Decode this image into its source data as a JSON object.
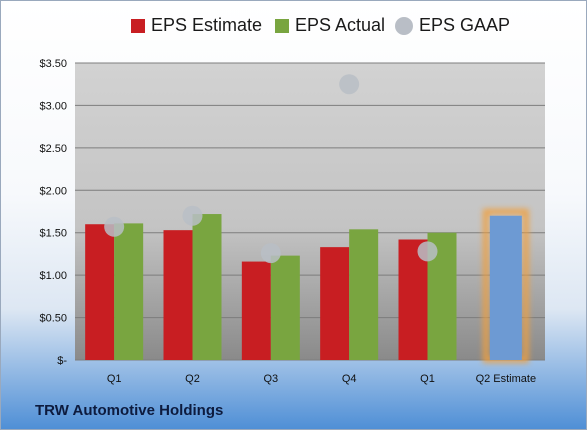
{
  "colors": {
    "estimate": "#c81e22",
    "actual": "#79a540",
    "gaap": "#b9bec6",
    "next_estimate": "#6d9ad3",
    "next_estimate_glow": "#f0a040"
  },
  "legend": [
    {
      "label": "EPS Estimate",
      "color": "#c81e22",
      "shape": "square"
    },
    {
      "label": "EPS Actual",
      "color": "#79a540",
      "shape": "square"
    },
    {
      "label": "EPS GAAP",
      "color": "#b9bec6",
      "shape": "circle"
    }
  ],
  "company": "TRW Automotive Holdings",
  "chart_data": {
    "type": "bar",
    "categories": [
      "Q1",
      "Q2",
      "Q3",
      "Q4",
      "Q1",
      "Q2 Estimate"
    ],
    "series": [
      {
        "name": "EPS Estimate",
        "values": [
          1.6,
          1.53,
          1.16,
          1.33,
          1.42,
          null
        ]
      },
      {
        "name": "EPS Actual",
        "values": [
          1.61,
          1.72,
          1.23,
          1.54,
          1.5,
          null
        ]
      },
      {
        "name": "EPS GAAP",
        "values": [
          1.57,
          1.7,
          1.26,
          3.25,
          1.28,
          null
        ]
      },
      {
        "values": [
          null,
          null,
          null,
          null,
          null,
          1.7
        ]
      }
    ],
    "ylim": [
      0,
      3.5
    ],
    "yticks": [
      {
        "value": 0,
        "label": "$-"
      },
      {
        "value": 0.5,
        "label": "$0.50"
      },
      {
        "value": 1.0,
        "label": "$1.00"
      },
      {
        "value": 1.5,
        "label": "$1.50"
      },
      {
        "value": 2.0,
        "label": "$2.00"
      },
      {
        "value": 2.5,
        "label": "$2.50"
      },
      {
        "value": 3.0,
        "label": "$3.00"
      },
      {
        "value": 3.5,
        "label": "$3.50"
      }
    ],
    "grid": true,
    "legend_position": "top"
  }
}
